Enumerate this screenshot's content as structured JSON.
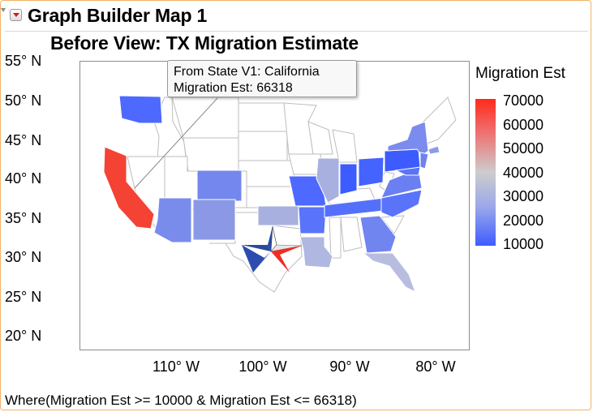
{
  "header": {
    "title": "Graph Builder Map 1"
  },
  "chart_data": {
    "type": "map",
    "title": "Before View: TX Migration Estimate",
    "y_ticks": [
      "55° N",
      "50° N",
      "45° N",
      "40° N",
      "35° N",
      "30° N",
      "25° N",
      "20° N"
    ],
    "x_ticks": [
      "110° W",
      "100° W",
      "90° W",
      "80° W"
    ],
    "ylim": [
      18,
      55
    ],
    "xlim": [
      -126,
      -66
    ],
    "legend": {
      "title": "Migration Est",
      "labels": [
        "70000",
        "60000",
        "50000",
        "40000",
        "30000",
        "20000",
        "10000"
      ],
      "range": [
        10000,
        70000
      ],
      "colors": {
        "high": "#ff2a1a",
        "mid": "#cdcdcd",
        "low": "#3d5cff"
      }
    },
    "tooltip": {
      "line1": "From State V1: California",
      "line2": "Migration Est: 66318"
    }
  },
  "footer": {
    "where": "Where(Migration Est >= 10000 & Migration Est <= 66318)"
  }
}
